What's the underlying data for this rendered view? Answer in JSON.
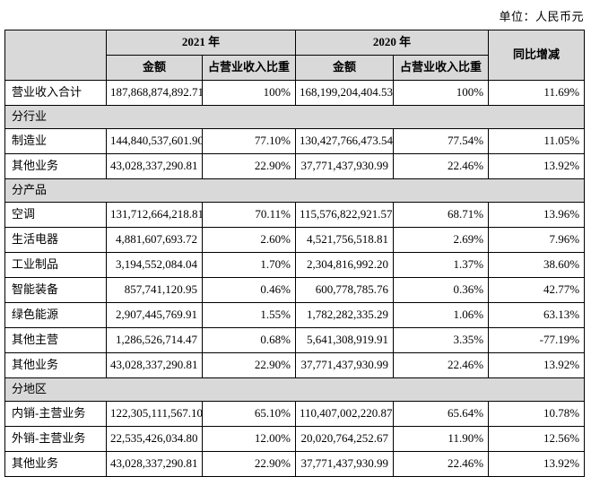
{
  "meta": {
    "unit_label": "单位：人民币元"
  },
  "colors": {
    "header_bg": "#d9d9d9",
    "border": "#000000",
    "text": "#000000"
  },
  "table": {
    "header": {
      "year_2021": "2021 年",
      "year_2020": "2020 年",
      "amount_2021": "金额",
      "proportion_2021": "占营业收入比重",
      "amount_2020": "金额",
      "proportion_2020": "占营业收入比重",
      "yoy": "同比增减"
    },
    "rows": [
      {
        "type": "data",
        "label": "营业收入合计",
        "a2021": "187,868,874,892.71",
        "p2021": "100%",
        "a2020": "168,199,204,404.53",
        "p2020": "100%",
        "yoy": "11.69%"
      },
      {
        "type": "section",
        "label": "分行业"
      },
      {
        "type": "data",
        "label": "制造业",
        "a2021": "144,840,537,601.90",
        "p2021": "77.10%",
        "a2020": "130,427,766,473.54",
        "p2020": "77.54%",
        "yoy": "11.05%"
      },
      {
        "type": "data",
        "label": "其他业务",
        "a2021": "43,028,337,290.81",
        "p2021": "22.90%",
        "a2020": "37,771,437,930.99",
        "p2020": "22.46%",
        "yoy": "13.92%"
      },
      {
        "type": "section",
        "label": "分产品"
      },
      {
        "type": "data",
        "label": "空调",
        "a2021": "131,712,664,218.81",
        "p2021": "70.11%",
        "a2020": "115,576,822,921.57",
        "p2020": "68.71%",
        "yoy": "13.96%"
      },
      {
        "type": "data",
        "label": "生活电器",
        "a2021": "4,881,607,693.72",
        "p2021": "2.60%",
        "a2020": "4,521,756,518.81",
        "p2020": "2.69%",
        "yoy": "7.96%"
      },
      {
        "type": "data",
        "label": "工业制品",
        "a2021": "3,194,552,084.04",
        "p2021": "1.70%",
        "a2020": "2,304,816,992.20",
        "p2020": "1.37%",
        "yoy": "38.60%"
      },
      {
        "type": "data",
        "label": "智能装备",
        "a2021": "857,741,120.95",
        "p2021": "0.46%",
        "a2020": "600,778,785.76",
        "p2020": "0.36%",
        "yoy": "42.77%"
      },
      {
        "type": "data",
        "label": "绿色能源",
        "a2021": "2,907,445,769.91",
        "p2021": "1.55%",
        "a2020": "1,782,282,335.29",
        "p2020": "1.06%",
        "yoy": "63.13%"
      },
      {
        "type": "data",
        "label": "其他主营",
        "a2021": "1,286,526,714.47",
        "p2021": "0.68%",
        "a2020": "5,641,308,919.91",
        "p2020": "3.35%",
        "yoy": "-77.19%"
      },
      {
        "type": "data",
        "label": "其他业务",
        "a2021": "43,028,337,290.81",
        "p2021": "22.90%",
        "a2020": "37,771,437,930.99",
        "p2020": "22.46%",
        "yoy": "13.92%"
      },
      {
        "type": "section",
        "label": "分地区"
      },
      {
        "type": "data",
        "label": "内销-主营业务",
        "a2021": "122,305,111,567.10",
        "p2021": "65.10%",
        "a2020": "110,407,002,220.87",
        "p2020": "65.64%",
        "yoy": "10.78%"
      },
      {
        "type": "data",
        "label": "外销-主营业务",
        "a2021": "22,535,426,034.80",
        "p2021": "12.00%",
        "a2020": "20,020,764,252.67",
        "p2020": "11.90%",
        "yoy": "12.56%"
      },
      {
        "type": "data",
        "label": "其他业务",
        "a2021": "43,028,337,290.81",
        "p2021": "22.90%",
        "a2020": "37,771,437,930.99",
        "p2020": "22.46%",
        "yoy": "13.92%"
      }
    ]
  }
}
